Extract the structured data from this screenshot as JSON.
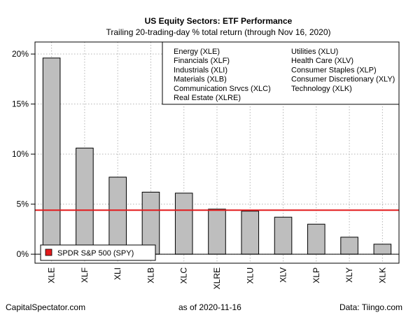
{
  "chart_data": {
    "type": "bar",
    "title": "US Equity Sectors: ETF Performance",
    "subtitle": "Trailing 20-trading-day % total return (through Nov 16, 2020)",
    "categories": [
      "XLE",
      "XLF",
      "XLI",
      "XLB",
      "XLC",
      "XLRE",
      "XLU",
      "XLV",
      "XLP",
      "XLY",
      "XLK"
    ],
    "values": [
      19.6,
      10.6,
      7.7,
      6.2,
      6.1,
      4.5,
      4.3,
      3.7,
      3.0,
      1.7,
      1.0
    ],
    "ylim": [
      -0.9,
      21.2
    ],
    "yticks": [
      0,
      5,
      10,
      15,
      20
    ],
    "ytick_labels": [
      "0%",
      "5%",
      "10%",
      "15%",
      "20%"
    ],
    "reference_line": {
      "label": "SPDR S&P 500 (SPY)",
      "value": 4.4,
      "color": "#e31a1c"
    },
    "bar_color": "#bebebe",
    "grid": true,
    "legend": {
      "placement": "top-right",
      "entries": [
        "Energy (XLE)",
        "Financials (XLF)",
        "Industrials (XLI)",
        "Materials (XLB)",
        "Communication Srvcs (XLC)",
        "Real Estate (XLRE)",
        "Utilities (XLU)",
        "Health Care (XLV)",
        "Consumer Staples (XLP)",
        "Consumer Discretionary (XLY)",
        "Technology (XLK)"
      ]
    }
  },
  "footer": {
    "left": "CapitalSpectator.com",
    "center": "as of   2020-11-16",
    "right": "Data: Tiingo.com"
  }
}
